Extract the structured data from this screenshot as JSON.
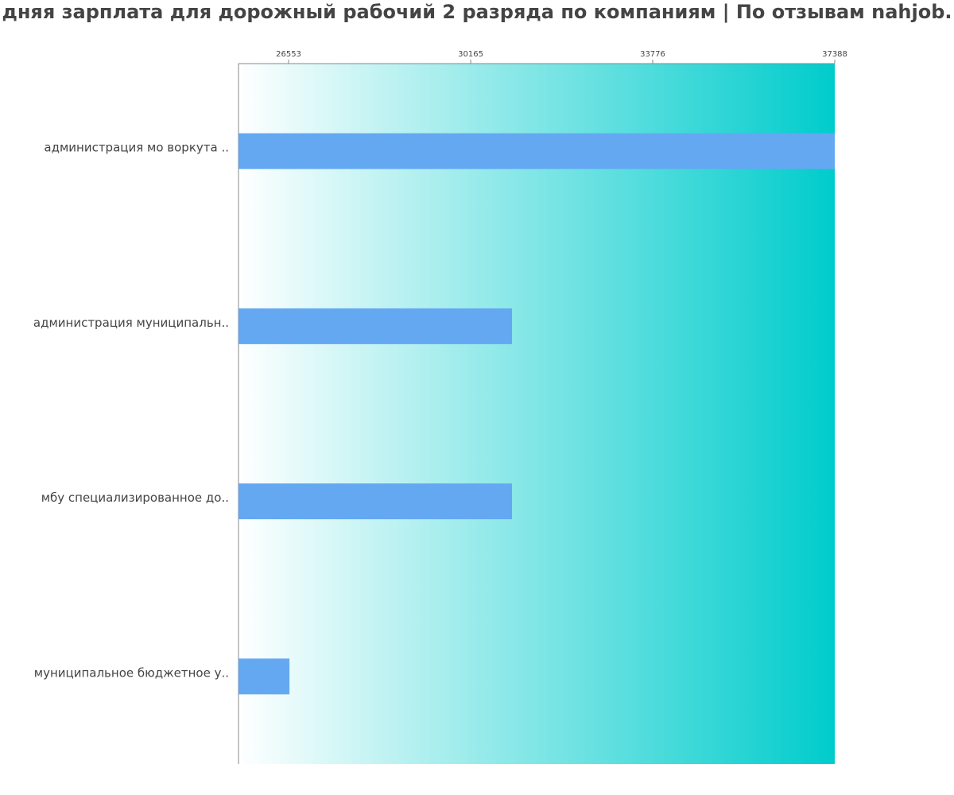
{
  "chart_data": {
    "type": "barh",
    "title": "дняя зарплата для дорожный рабочий 2 разряда по компаниям  | По отзывам nahjob.",
    "categories": [
      "администрация мо воркута ..",
      "администрация муниципальн..",
      "мбу специализированное до..",
      "муниципальное бюджетное у.."
    ],
    "values": [
      37388,
      30985,
      30985,
      26570
    ],
    "color": "#64a8f2",
    "xlim": [
      25559,
      37388
    ],
    "xticks": [
      26553,
      30165,
      33776,
      37388
    ],
    "grid": false
  }
}
